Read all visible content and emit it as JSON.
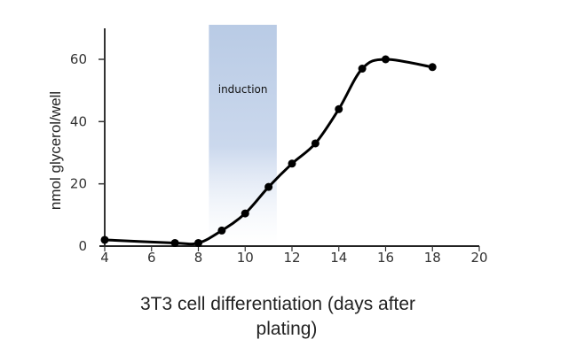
{
  "chart_data": {
    "type": "line",
    "title": "",
    "xlabel": "3T3  cell differentiation (days after plating)",
    "xlabel_lines": [
      "3T3  cell differentiation (days after",
      "plating)"
    ],
    "ylabel": "nmol glycerol/well",
    "xlim": [
      4,
      20
    ],
    "ylim": [
      0,
      70
    ],
    "xticks": [
      4,
      6,
      8,
      10,
      12,
      14,
      16,
      18,
      20
    ],
    "yticks": [
      0,
      20,
      40,
      60
    ],
    "grid": false,
    "legend": null,
    "series": [
      {
        "name": "glycerol",
        "color": "#000000",
        "x": [
          4,
          7,
          8,
          9,
          10,
          11,
          12,
          13,
          14,
          15,
          16,
          18
        ],
        "y": [
          2,
          1,
          1,
          5,
          10.5,
          19,
          26.5,
          33,
          44,
          57,
          60,
          57.5
        ]
      }
    ],
    "annotations": [
      {
        "type": "shaded-band",
        "label": "induction",
        "x_start": 8.45,
        "x_end": 11.35,
        "color": "#b7c9e4"
      }
    ]
  }
}
